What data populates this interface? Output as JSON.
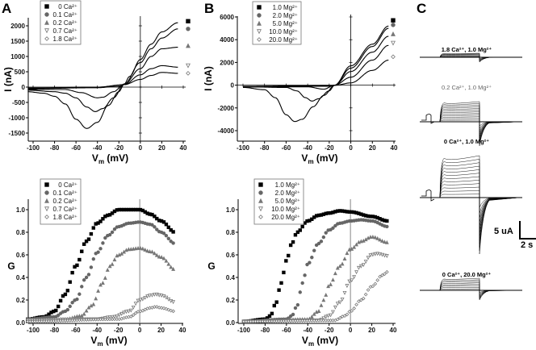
{
  "panels": {
    "a": "A",
    "b": "B",
    "c": "C"
  },
  "chart_data": [
    {
      "id": "A-IV",
      "type": "line",
      "xlabel": "Vm (mV)",
      "xlabel_main": "V",
      "xlabel_sub": "m",
      "xlabel_unit": " (mV)",
      "ylabel": "I (nA)",
      "xlim": [
        -100,
        40
      ],
      "ylim": [
        -1500,
        2000
      ],
      "xticks": [
        -100,
        -80,
        -60,
        -40,
        -20,
        0,
        20,
        40
      ],
      "yticks": [
        -1500,
        -1000,
        -500,
        0,
        500,
        1000,
        1500,
        2000
      ],
      "legend": "top-left",
      "grid": false,
      "series": [
        {
          "name": "0 Ca²⁺",
          "marker": "square",
          "color": "#000000",
          "end_marker_value": 2150,
          "x": [
            -105,
            -90,
            -80,
            -70,
            -60,
            -50,
            -40,
            -30,
            -20,
            -15,
            -10,
            0,
            10,
            20,
            35
          ],
          "y": [
            -150,
            -200,
            -300,
            -550,
            -1050,
            -1350,
            -1150,
            -600,
            -150,
            100,
            350,
            900,
            1400,
            1800,
            2100
          ]
        },
        {
          "name": "0.1 Ca²⁺",
          "marker": "circle",
          "color": "#666666",
          "end_marker_value": 1900,
          "x": [
            -105,
            -80,
            -70,
            -60,
            -50,
            -42,
            -35,
            -25,
            -15,
            0,
            10,
            20,
            35
          ],
          "y": [
            -100,
            -150,
            -200,
            -350,
            -650,
            -800,
            -700,
            -350,
            100,
            800,
            1250,
            1600,
            1900
          ]
        },
        {
          "name": "0.2 Ca²⁺",
          "marker": "triangle-up",
          "color": "#777777",
          "end_marker_value": 1350,
          "x": [
            -105,
            -70,
            -55,
            -40,
            -35,
            -25,
            -15,
            0,
            10,
            20,
            35
          ],
          "y": [
            -80,
            -80,
            -180,
            -350,
            -330,
            -150,
            100,
            600,
            1000,
            1250,
            1300
          ]
        },
        {
          "name": "0.7 Ca²⁺",
          "marker": "triangle-down",
          "color": "#777777",
          "end_marker_value": 700,
          "x": [
            -105,
            -40,
            -20,
            -15,
            0,
            10,
            20,
            35
          ],
          "y": [
            -50,
            -20,
            30,
            80,
            400,
            600,
            700,
            650
          ]
        },
        {
          "name": "1.8 Ca²⁺",
          "marker": "diamond",
          "color": "#777777",
          "end_marker_value": 450,
          "x": [
            -105,
            -40,
            -15,
            0,
            10,
            20,
            35
          ],
          "y": [
            -30,
            0,
            80,
            250,
            380,
            480,
            450
          ]
        }
      ]
    },
    {
      "id": "B-IV",
      "type": "line",
      "xlabel": "Vm (mV)",
      "xlabel_main": "V",
      "xlabel_sub": "m",
      "xlabel_unit": " (mV)",
      "ylabel": "I (nA)",
      "xlim": [
        -100,
        40
      ],
      "ylim": [
        -4000,
        6000
      ],
      "xticks": [
        -100,
        -80,
        -60,
        -40,
        -20,
        0,
        20,
        40
      ],
      "yticks": [
        -4000,
        -2000,
        0,
        2000,
        4000,
        6000
      ],
      "legend": "top-left",
      "grid": false,
      "series": [
        {
          "name": "1.0 Mg²⁺",
          "marker": "square",
          "color": "#000000",
          "end_marker_value": 5700,
          "x": [
            -100,
            -80,
            -70,
            -60,
            -52,
            -45,
            -35,
            -25,
            -15,
            0,
            20,
            35
          ],
          "y": [
            -200,
            -400,
            -1100,
            -2600,
            -3200,
            -3000,
            -1900,
            -900,
            0,
            1700,
            3600,
            5200
          ]
        },
        {
          "name": "2.0 Mg²⁺",
          "marker": "circle",
          "color": "#666666",
          "end_marker_value": 5300,
          "x": [
            -100,
            -60,
            -50,
            -42,
            -36,
            -30,
            -20,
            -15,
            0,
            20,
            35
          ],
          "y": [
            -150,
            -200,
            -500,
            -1100,
            -1400,
            -1200,
            -500,
            0,
            1500,
            3400,
            5000
          ]
        },
        {
          "name": "5.0 Mg²⁺",
          "marker": "triangle-up",
          "color": "#777777",
          "end_marker_value": 4500,
          "x": [
            -100,
            -40,
            -25,
            -15,
            0,
            20,
            35
          ],
          "y": [
            -150,
            -150,
            -350,
            0,
            1200,
            2900,
            4300
          ]
        },
        {
          "name": "10.0 Mg²⁺",
          "marker": "triangle-down",
          "color": "#777777",
          "end_marker_value": 3700,
          "x": [
            -100,
            -20,
            -15,
            0,
            20,
            35
          ],
          "y": [
            -100,
            -100,
            0,
            700,
            2200,
            3500
          ]
        },
        {
          "name": "20.0 Mg²⁺",
          "marker": "diamond",
          "color": "#777777",
          "end_marker_value": 2500,
          "x": [
            -100,
            -15,
            0,
            20,
            35
          ],
          "y": [
            -100,
            -20,
            200,
            1300,
            2200
          ]
        }
      ]
    },
    {
      "id": "A-G",
      "type": "scatter",
      "xlabel": "Vm (mV)",
      "xlabel_main": "V",
      "xlabel_sub": "m",
      "xlabel_unit": " (mV)",
      "ylabel": "G",
      "xlim": [
        -100,
        40
      ],
      "ylim": [
        0,
        1.0
      ],
      "xticks": [
        -100,
        -80,
        -60,
        -40,
        -20,
        0,
        20,
        40
      ],
      "yticks": [
        0.0,
        0.2,
        0.4,
        0.6,
        0.8,
        1.0
      ],
      "ytick_labels": [
        "0.0",
        "0.2",
        "0.4",
        "0.6",
        "0.8",
        "1.0"
      ],
      "legend": "top-left",
      "grid": false,
      "series": [
        {
          "name": "0 Ca²⁺",
          "marker": "square",
          "color": "#000000",
          "x": [
            -105,
            -90,
            -80,
            -70,
            -60,
            -50,
            -40,
            -30,
            -20,
            -10,
            0,
            10,
            20,
            33
          ],
          "y": [
            0.03,
            0.05,
            0.1,
            0.25,
            0.5,
            0.72,
            0.88,
            0.95,
            1.0,
            1.0,
            1.0,
            0.96,
            0.9,
            0.8
          ]
        },
        {
          "name": "0.1 Ca²⁺",
          "marker": "circle",
          "color": "#666666",
          "x": [
            -105,
            -80,
            -70,
            -60,
            -50,
            -40,
            -30,
            -20,
            -10,
            0,
            10,
            20,
            33
          ],
          "y": [
            0.03,
            0.05,
            0.1,
            0.2,
            0.4,
            0.62,
            0.77,
            0.85,
            0.88,
            0.89,
            0.87,
            0.8,
            0.7
          ]
        },
        {
          "name": "0.2 Ca²⁺",
          "marker": "triangle-up",
          "color": "#777777",
          "x": [
            -105,
            -70,
            -55,
            -45,
            -35,
            -28,
            -20,
            -10,
            0,
            10,
            20,
            33
          ],
          "y": [
            0.02,
            0.03,
            0.06,
            0.15,
            0.35,
            0.5,
            0.6,
            0.65,
            0.66,
            0.63,
            0.58,
            0.47
          ]
        },
        {
          "name": "0.7 Ca²⁺",
          "marker": "triangle-down",
          "color": "#777777",
          "x": [
            -105,
            -40,
            -25,
            -10,
            0,
            10,
            15,
            20,
            33
          ],
          "y": [
            0.02,
            0.03,
            0.05,
            0.1,
            0.2,
            0.24,
            0.25,
            0.24,
            0.18
          ]
        },
        {
          "name": "1.8 Ca²⁺",
          "marker": "diamond",
          "color": "#777777",
          "x": [
            -105,
            -20,
            -10,
            0,
            10,
            15,
            20,
            33
          ],
          "y": [
            0.01,
            0.03,
            0.05,
            0.1,
            0.13,
            0.14,
            0.13,
            0.1
          ]
        }
      ]
    },
    {
      "id": "B-G",
      "type": "scatter",
      "xlabel": "Vm (mV)",
      "xlabel_main": "V",
      "xlabel_sub": "m",
      "xlabel_unit": " (mV)",
      "ylabel": "G",
      "xlim": [
        -100,
        40
      ],
      "ylim": [
        0,
        1.0
      ],
      "xticks": [
        -100,
        -80,
        -60,
        -40,
        -20,
        0,
        20,
        40
      ],
      "yticks": [
        0.0,
        0.2,
        0.4,
        0.6,
        0.8,
        1.0
      ],
      "ytick_labels": [
        "0.0",
        "0.2",
        "0.4",
        "0.6",
        "0.8",
        "1.0"
      ],
      "legend": "top-left",
      "grid": false,
      "series": [
        {
          "name": "1.0 Mg²⁺",
          "marker": "square",
          "color": "#000000",
          "x": [
            -100,
            -80,
            -75,
            -70,
            -65,
            -60,
            -55,
            -50,
            -40,
            -30,
            -20,
            -10,
            0,
            20,
            35
          ],
          "y": [
            0.01,
            0.03,
            0.06,
            0.17,
            0.35,
            0.55,
            0.7,
            0.8,
            0.9,
            0.95,
            0.97,
            0.99,
            0.98,
            0.94,
            0.9
          ]
        },
        {
          "name": "2.0 Mg²⁺",
          "marker": "circle",
          "color": "#666666",
          "x": [
            -100,
            -60,
            -55,
            -50,
            -45,
            -40,
            -30,
            -20,
            -10,
            0,
            10,
            20,
            35
          ],
          "y": [
            0.01,
            0.03,
            0.06,
            0.15,
            0.35,
            0.52,
            0.7,
            0.82,
            0.88,
            0.9,
            0.91,
            0.9,
            0.85
          ]
        },
        {
          "name": "5.0 Mg²⁺",
          "marker": "triangle-up",
          "color": "#777777",
          "x": [
            -100,
            -40,
            -30,
            -25,
            -20,
            -10,
            0,
            10,
            20,
            35
          ],
          "y": [
            0.01,
            0.03,
            0.1,
            0.2,
            0.33,
            0.5,
            0.65,
            0.72,
            0.76,
            0.71
          ]
        },
        {
          "name": "10.0 Mg²⁺",
          "marker": "triangle-down",
          "color": "#777777",
          "x": [
            -100,
            -30,
            -20,
            -10,
            0,
            10,
            20,
            25,
            35
          ],
          "y": [
            0.01,
            0.02,
            0.06,
            0.18,
            0.37,
            0.5,
            0.6,
            0.61,
            0.59
          ]
        },
        {
          "name": "20.0 Mg²⁺",
          "marker": "diamond",
          "color": "#777777",
          "x": [
            -100,
            -15,
            -5,
            0,
            10,
            20,
            30,
            35
          ],
          "y": [
            0.01,
            0.02,
            0.06,
            0.1,
            0.2,
            0.32,
            0.42,
            0.45
          ]
        }
      ]
    }
  ],
  "traces": {
    "titles": [
      "1.8 Ca²⁺, 1.0 Mg²⁺",
      "0.2 Ca²⁺, 1.0 Mg²⁺",
      "0 Ca²⁺, 1.0 Mg²⁺",
      "0 Ca²⁺,  20.0 Mg²⁺"
    ],
    "scale_current": "5 uA",
    "scale_time": "2 s"
  }
}
